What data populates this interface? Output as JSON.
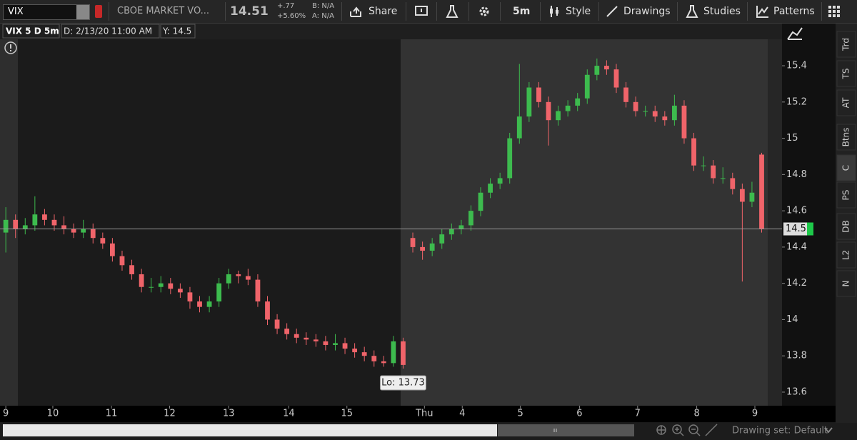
{
  "toolbar": {
    "symbol": "VIX",
    "description": "CBOE MARKET VO...",
    "last": "14.51",
    "change": "+.77",
    "change_pct": "+5.60%",
    "bid": "B: N/A",
    "ask": "A: N/A",
    "buttons": [
      "Share",
      "5m",
      "Style",
      "Drawings",
      "Studies",
      "Patterns"
    ]
  },
  "header": {
    "study": "VIX 5 D 5m",
    "date": "D: 2/13/20 11:00 AM",
    "y": "Y: 14.5"
  },
  "sidebar_tabs": [
    "Trd",
    "TS",
    "AT",
    "Btns",
    "C",
    "PS",
    "DB",
    "L2",
    "N"
  ],
  "footer": {
    "drawing_set": "Drawing set: Default"
  },
  "chart_data": {
    "type": "candlestick",
    "ohlc": [
      [
        14.48,
        14.62,
        14.37,
        14.55
      ],
      [
        14.55,
        14.58,
        14.45,
        14.5
      ],
      [
        14.5,
        14.56,
        14.47,
        14.52
      ],
      [
        14.52,
        14.68,
        14.49,
        14.58
      ],
      [
        14.58,
        14.61,
        14.52,
        14.55
      ],
      [
        14.55,
        14.58,
        14.49,
        14.52
      ],
      [
        14.52,
        14.57,
        14.47,
        14.5
      ],
      [
        14.5,
        14.53,
        14.45,
        14.48
      ],
      [
        14.48,
        14.55,
        14.45,
        14.5
      ],
      [
        14.5,
        14.53,
        14.42,
        14.45
      ],
      [
        14.45,
        14.48,
        14.39,
        14.42
      ],
      [
        14.42,
        14.45,
        14.32,
        14.35
      ],
      [
        14.35,
        14.38,
        14.27,
        14.3
      ],
      [
        14.3,
        14.33,
        14.22,
        14.25
      ],
      [
        14.25,
        14.28,
        14.15,
        14.18
      ],
      [
        14.18,
        14.23,
        14.15,
        14.18
      ],
      [
        14.18,
        14.24,
        14.15,
        14.2
      ],
      [
        14.2,
        14.23,
        14.14,
        14.17
      ],
      [
        14.17,
        14.2,
        14.12,
        14.15
      ],
      [
        14.15,
        14.18,
        14.06,
        14.1
      ],
      [
        14.1,
        14.13,
        14.04,
        14.07
      ],
      [
        14.07,
        14.13,
        14.04,
        14.1
      ],
      [
        14.1,
        14.23,
        14.07,
        14.2
      ],
      [
        14.2,
        14.28,
        14.17,
        14.25
      ],
      [
        14.25,
        14.27,
        14.2,
        14.24
      ],
      [
        14.24,
        14.28,
        14.19,
        14.22
      ],
      [
        14.22,
        14.25,
        14.07,
        14.1
      ],
      [
        14.1,
        14.13,
        13.97,
        14.0
      ],
      [
        14.0,
        14.03,
        13.92,
        13.95
      ],
      [
        13.95,
        13.98,
        13.89,
        13.92
      ],
      [
        13.92,
        13.95,
        13.87,
        13.9
      ],
      [
        13.9,
        13.93,
        13.86,
        13.89
      ],
      [
        13.89,
        13.92,
        13.85,
        13.88
      ],
      [
        13.88,
        13.91,
        13.83,
        13.86
      ],
      [
        13.86,
        13.92,
        13.83,
        13.87
      ],
      [
        13.87,
        13.9,
        13.81,
        13.84
      ],
      [
        13.84,
        13.87,
        13.79,
        13.82
      ],
      [
        13.82,
        13.85,
        13.77,
        13.8
      ],
      [
        13.8,
        13.83,
        13.74,
        13.77
      ],
      [
        13.77,
        13.8,
        13.74,
        13.76
      ],
      [
        13.76,
        13.91,
        13.74,
        13.88
      ],
      [
        13.88,
        13.9,
        13.73,
        13.75
      ],
      [
        14.45,
        14.48,
        14.37,
        14.4
      ],
      [
        14.4,
        14.43,
        14.33,
        14.38
      ],
      [
        14.38,
        14.45,
        14.35,
        14.42
      ],
      [
        14.42,
        14.5,
        14.39,
        14.47
      ],
      [
        14.47,
        14.53,
        14.44,
        14.5
      ],
      [
        14.5,
        14.55,
        14.47,
        14.52
      ],
      [
        14.52,
        14.63,
        14.49,
        14.6
      ],
      [
        14.6,
        14.73,
        14.57,
        14.7
      ],
      [
        14.7,
        14.78,
        14.67,
        14.75
      ],
      [
        14.75,
        14.81,
        14.72,
        14.78
      ],
      [
        14.78,
        15.03,
        14.75,
        15.0
      ],
      [
        15.0,
        15.41,
        14.97,
        15.12
      ],
      [
        15.12,
        15.31,
        15.09,
        15.28
      ],
      [
        15.28,
        15.31,
        15.17,
        15.2
      ],
      [
        15.2,
        15.23,
        14.96,
        15.1
      ],
      [
        15.1,
        15.18,
        15.07,
        15.15
      ],
      [
        15.15,
        15.21,
        15.12,
        15.18
      ],
      [
        15.18,
        15.25,
        15.15,
        15.22
      ],
      [
        15.22,
        15.38,
        15.19,
        15.35
      ],
      [
        15.35,
        15.44,
        15.32,
        15.4
      ],
      [
        15.4,
        15.43,
        15.35,
        15.38
      ],
      [
        15.38,
        15.41,
        15.25,
        15.28
      ],
      [
        15.28,
        15.31,
        15.17,
        15.2
      ],
      [
        15.2,
        15.23,
        15.12,
        15.15
      ],
      [
        15.15,
        15.18,
        15.12,
        15.15
      ],
      [
        15.15,
        15.18,
        15.09,
        15.12
      ],
      [
        15.12,
        15.15,
        15.07,
        15.1
      ],
      [
        15.1,
        15.24,
        15.07,
        15.18
      ],
      [
        15.18,
        15.21,
        14.97,
        15.0
      ],
      [
        15.0,
        15.03,
        14.82,
        14.85
      ],
      [
        14.85,
        14.9,
        14.82,
        14.85
      ],
      [
        14.85,
        14.88,
        14.75,
        14.78
      ],
      [
        14.78,
        14.84,
        14.75,
        14.78
      ],
      [
        14.78,
        14.81,
        14.69,
        14.72
      ],
      [
        14.72,
        14.75,
        14.21,
        14.65
      ],
      [
        14.65,
        14.76,
        14.62,
        14.7
      ],
      [
        14.91,
        14.92,
        14.48,
        14.5
      ]
    ],
    "ylim": [
      13.525,
      15.546
    ],
    "yticks": [
      13.6,
      13.8,
      14,
      14.2,
      14.4,
      14.6,
      14.8,
      15,
      15.2,
      15.4
    ],
    "xlim": [
      -0.6,
      80.1
    ],
    "xticks": [
      {
        "value": 0,
        "label": "9"
      },
      {
        "value": 4.85,
        "label": "10"
      },
      {
        "value": 10.9,
        "label": "11"
      },
      {
        "value": 16.9,
        "label": "12"
      },
      {
        "value": 23.0,
        "label": "13"
      },
      {
        "value": 29.2,
        "label": "14"
      },
      {
        "value": 35.2,
        "label": "15"
      },
      {
        "value": 43.2,
        "label": "Thu"
      },
      {
        "value": 47.1,
        "label": "4"
      },
      {
        "value": 53.1,
        "label": "5"
      },
      {
        "value": 59.2,
        "label": "6"
      },
      {
        "value": 65.2,
        "label": "7"
      },
      {
        "value": 71.3,
        "label": "8"
      },
      {
        "value": 77.3,
        "label": "9"
      }
    ],
    "up_color": "#3dbb4e",
    "down_color": "#f0646a",
    "last_value": 14.5,
    "low_label": "Lo: 13.73"
  }
}
